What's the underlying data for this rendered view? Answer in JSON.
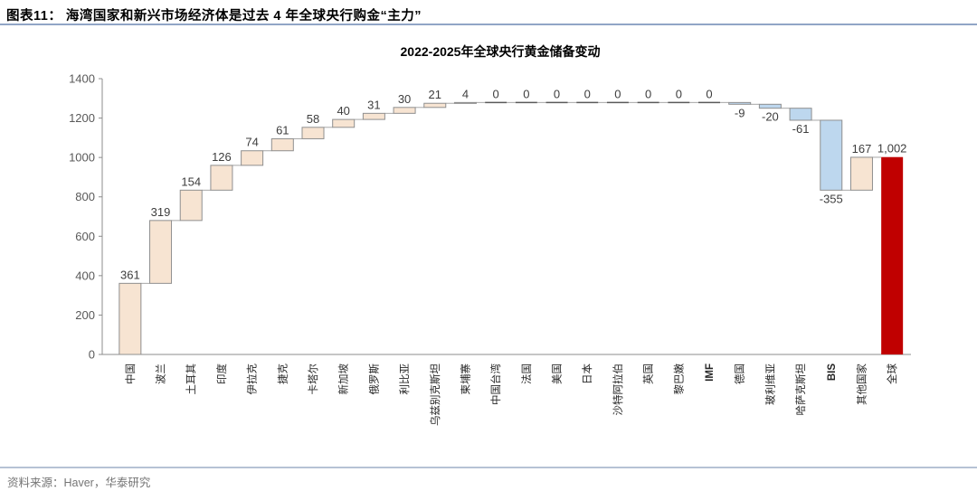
{
  "header": {
    "title": "图表11： 海湾国家和新兴市场经济体是过去 4 年全球央行购金“主力”"
  },
  "footer": {
    "source": "资料来源：Haver，华泰研究"
  },
  "chart_data": {
    "type": "bar",
    "subtype": "waterfall",
    "title": "2022-2025年全球央行黄金储备变动",
    "xlabel": "",
    "ylabel": "",
    "ylim": [
      0,
      1400
    ],
    "ytick_step": 200,
    "grid": false,
    "legend": "none",
    "total_category": "全球",
    "categories": [
      "中国",
      "波兰",
      "土耳其",
      "印度",
      "伊拉克",
      "捷克",
      "卡塔尔",
      "新加坡",
      "俄罗斯",
      "利比亚",
      "乌兹别克斯坦",
      "柬埔寨",
      "中国台湾",
      "法国",
      "美国",
      "日本",
      "沙特阿拉伯",
      "英国",
      "黎巴嫩",
      "IMF",
      "德国",
      "玻利维亚",
      "哈萨克斯坦",
      "BIS",
      "其他国家",
      "全球"
    ],
    "values": [
      361,
      319,
      154,
      126,
      74,
      61,
      58,
      40,
      31,
      30,
      21,
      4,
      0,
      0,
      0,
      0,
      0,
      0,
      0,
      0,
      -9,
      -20,
      -61,
      -355,
      167,
      1002
    ],
    "value_labels": [
      "361",
      "319",
      "154",
      "126",
      "74",
      "61",
      "58",
      "40",
      "31",
      "30",
      "21",
      "4",
      "0",
      "0",
      "0",
      "0",
      "0",
      "0",
      "0",
      "0",
      "-9",
      "-20",
      "-61",
      "-355",
      "167",
      "1,002"
    ],
    "colors": {
      "increase_fill": "#f7e4d2",
      "decrease_fill": "#bdd7ee",
      "total_fill": "#c00000",
      "bar_border": "#8f8f8f",
      "connector": "#a6a6a6",
      "zero_segment": "#595959",
      "axis": "#8c8c8c",
      "tick_label": "#595959",
      "value_label": "#3d3d3d",
      "category_label": "#262626",
      "title_color": "#000000"
    }
  }
}
